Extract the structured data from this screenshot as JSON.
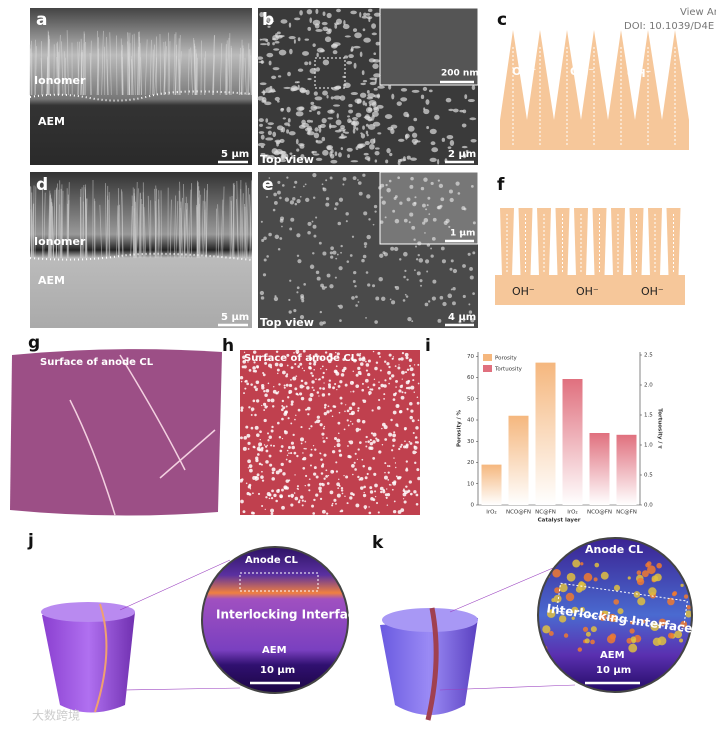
{
  "header": {
    "view_article": "View Art",
    "doi": "DOI: 10.1039/D4E"
  },
  "panels": {
    "a": {
      "label": "a",
      "top": "Ionomer",
      "bottom": "AEM",
      "scale_bar": "5 μm"
    },
    "b": {
      "label": "b",
      "caption": "Top view",
      "scale_bar": "2 μm",
      "inset_scale_bar": "200 nm"
    },
    "c": {
      "label": "c",
      "ions": [
        "OH⁻",
        "OH⁻",
        "OH⁻"
      ]
    },
    "d": {
      "label": "d",
      "top": "Ionomer",
      "bottom": "AEM",
      "scale_bar": "5 μm"
    },
    "e": {
      "label": "e",
      "caption": "Top view",
      "scale_bar": "4 μm",
      "inset_scale_bar": "1 μm"
    },
    "f": {
      "label": "f",
      "ions": [
        "OH⁻",
        "OH⁻",
        "OH⁻"
      ]
    },
    "g": {
      "label": "g",
      "caption": "Surface of anode CL"
    },
    "h": {
      "label": "h",
      "caption": "Surface of anode CL"
    },
    "i": {
      "label": "i"
    },
    "j": {
      "label": "j",
      "top": "Anode CL",
      "middle": "Interlocking Interface",
      "bottom": "AEM",
      "scale_bar": "10 μm"
    },
    "k": {
      "label": "k",
      "top": "Anode CL",
      "middle": "Interlocking Interface",
      "bottom": "AEM",
      "scale_bar": "10 μm"
    }
  },
  "watermark": "大数跨境",
  "chart_data": {
    "type": "bar",
    "categories": [
      "IrO₂",
      "NCO@FN",
      "NC@FN",
      "IrO₂",
      "NCO@FN",
      "NC@FN"
    ],
    "x_label": "Catalyst layer",
    "y_label": "Porosity / %",
    "y2_label": "Tortuosity / τ",
    "series": [
      {
        "name": "Porosity",
        "color": "#f5b77e",
        "values": [
          19,
          42,
          67,
          null,
          null,
          null
        ]
      },
      {
        "name": "Tortuosity",
        "color": "#e0707e",
        "axis": "y2",
        "values": [
          null,
          null,
          null,
          2.1,
          1.2,
          1.17
        ]
      }
    ],
    "ylim": [
      0,
      72
    ],
    "yticks": [
      0,
      10,
      20,
      30,
      40,
      50,
      60,
      70
    ],
    "y2lim": [
      0,
      2.55
    ],
    "y2ticks": [
      {
        "value": 0,
        "label": "0.0"
      },
      0.5,
      {
        "value": 1,
        "label": "1.0"
      },
      1.5,
      {
        "value": 2,
        "label": "2.0"
      },
      2.5
    ],
    "legend": "upper left"
  }
}
